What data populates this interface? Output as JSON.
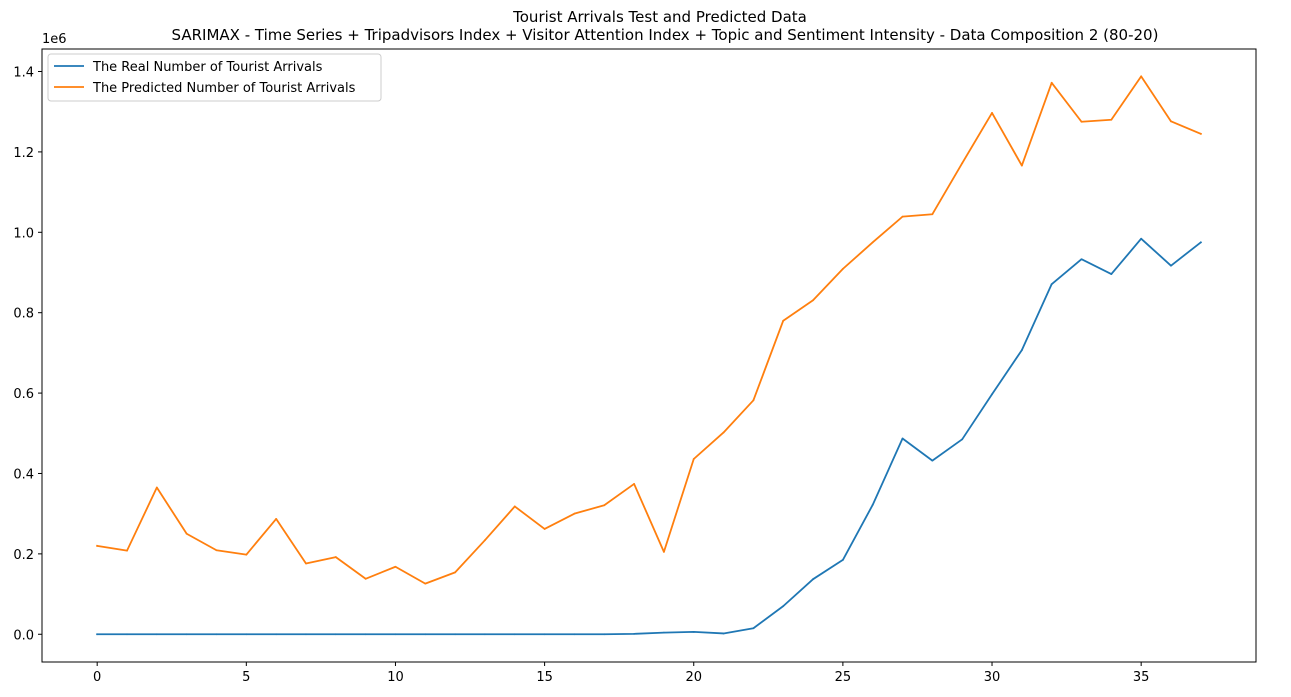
{
  "chart_data": {
    "type": "line",
    "title": "Tourist Arrivals Test and Predicted Data",
    "subtitle": "SARIMAX - Time Series + Tripadvisors Index + Visitor Attention Index + Topic and Sentiment Intensity - Data Composition 2 (80-20)",
    "xlabel": "",
    "ylabel": "",
    "y_scale_label": "1e6",
    "xlim": [
      -1.85,
      38.85
    ],
    "ylim": [
      -0.069,
      1.456
    ],
    "x_ticks": [
      0,
      5,
      10,
      15,
      20,
      25,
      30,
      35
    ],
    "x_tick_labels": [
      "0",
      "5",
      "10",
      "15",
      "20",
      "25",
      "30",
      "35"
    ],
    "y_ticks": [
      0.0,
      0.2,
      0.4,
      0.6,
      0.8,
      1.0,
      1.2,
      1.4
    ],
    "y_tick_labels": [
      "0.0",
      "0.2",
      "0.4",
      "0.6",
      "0.8",
      "1.0",
      "1.2",
      "1.4"
    ],
    "grid": false,
    "legend_position": "top-left",
    "x": [
      0,
      1,
      2,
      3,
      4,
      5,
      6,
      7,
      8,
      9,
      10,
      11,
      12,
      13,
      14,
      15,
      16,
      17,
      18,
      19,
      20,
      21,
      22,
      23,
      24,
      25,
      26,
      27,
      28,
      29,
      30,
      31,
      32,
      33,
      34,
      35,
      36,
      37
    ],
    "series": [
      {
        "name": "The Real Number of Tourist Arrivals",
        "color": "#1f77b4",
        "values": [
          0.0,
          0.0,
          0.0,
          0.0,
          0.0,
          0.0,
          0.0,
          0.0,
          0.0,
          0.0,
          0.0,
          0.0,
          0.0,
          0.0,
          0.0,
          0.0,
          0.0,
          0.0,
          0.001,
          0.004,
          0.006,
          0.002,
          0.015,
          0.07,
          0.137,
          0.185,
          0.322,
          0.487,
          0.432,
          0.485,
          0.597,
          0.707,
          0.871,
          0.933,
          0.896,
          0.984,
          0.917,
          0.975
        ]
      },
      {
        "name": "The Predicted Number of Tourist Arrivals",
        "color": "#ff7f0e",
        "values": [
          0.22,
          0.208,
          0.365,
          0.25,
          0.209,
          0.198,
          0.287,
          0.176,
          0.192,
          0.138,
          0.168,
          0.126,
          0.154,
          0.234,
          0.318,
          0.262,
          0.3,
          0.321,
          0.374,
          0.205,
          0.436,
          0.502,
          0.582,
          0.78,
          0.831,
          0.909,
          0.975,
          1.039,
          1.045,
          1.172,
          1.297,
          1.166,
          1.372,
          1.275,
          1.28,
          1.388,
          1.276,
          1.245
        ]
      }
    ]
  }
}
